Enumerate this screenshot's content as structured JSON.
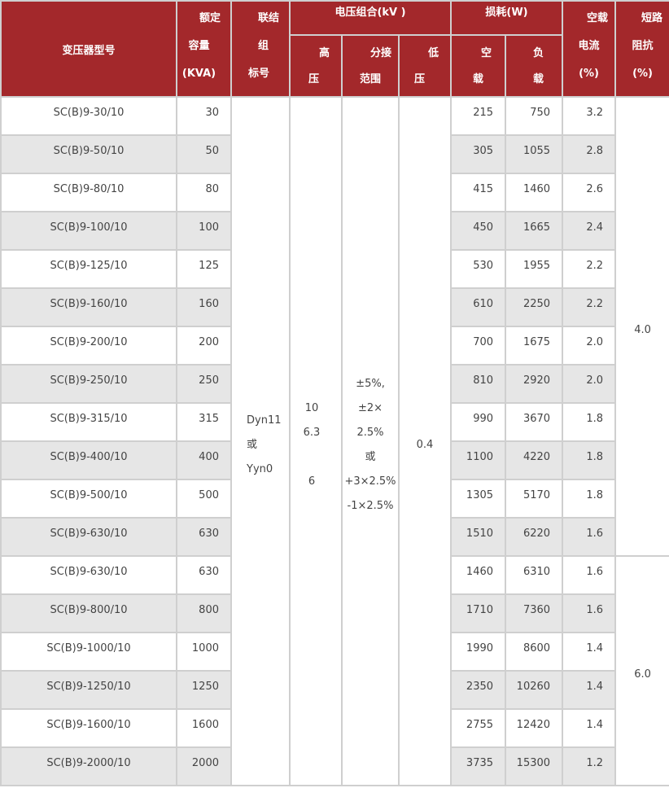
{
  "header": {
    "model": "变压器型号",
    "capacity": [
      "额定",
      "容量",
      "(KVA)"
    ],
    "connection": [
      "联结",
      "组",
      "标号"
    ],
    "voltage_group": "电压组合(kV )",
    "high_voltage": [
      "高",
      "压"
    ],
    "tap_range": [
      "分接",
      "范围"
    ],
    "low_voltage": [
      "低",
      "压"
    ],
    "loss_group": "损耗(W)",
    "no_load_loss": [
      "空",
      "载"
    ],
    "load_loss": [
      "负",
      "载"
    ],
    "no_load_current": [
      "空载",
      "电流",
      "(%)"
    ],
    "impedance": [
      "短路",
      "阻抗",
      "(%)"
    ]
  },
  "merged": {
    "connection": [
      "Dyn11",
      "或",
      "Yyn0"
    ],
    "high_voltage": [
      "10",
      "6.3",
      "",
      "6"
    ],
    "tap_range": [
      "±5%,",
      "±2×",
      "2.5%",
      "或",
      "+3×2.5%",
      "-1×2.5%"
    ],
    "low_voltage": "0.4",
    "impedance_groups": [
      {
        "value": "4.0",
        "rows": 12
      },
      {
        "value": "6.0",
        "rows": 6
      }
    ]
  },
  "rows": [
    {
      "model": "SC(B)9-30/10",
      "capacity": "30",
      "no_load": "215",
      "load": "750",
      "current": "3.2"
    },
    {
      "model": "SC(B)9-50/10",
      "capacity": "50",
      "no_load": "305",
      "load": "1055",
      "current": "2.8"
    },
    {
      "model": "SC(B)9-80/10",
      "capacity": "80",
      "no_load": "415",
      "load": "1460",
      "current": "2.6"
    },
    {
      "model": "SC(B)9-100/10",
      "capacity": "100",
      "no_load": "450",
      "load": "1665",
      "current": "2.4"
    },
    {
      "model": "SC(B)9-125/10",
      "capacity": "125",
      "no_load": "530",
      "load": "1955",
      "current": "2.2"
    },
    {
      "model": "SC(B)9-160/10",
      "capacity": "160",
      "no_load": "610",
      "load": "2250",
      "current": "2.2"
    },
    {
      "model": "SC(B)9-200/10",
      "capacity": "200",
      "no_load": "700",
      "load": "1675",
      "current": "2.0"
    },
    {
      "model": "SC(B)9-250/10",
      "capacity": "250",
      "no_load": "810",
      "load": "2920",
      "current": "2.0"
    },
    {
      "model": "SC(B)9-315/10",
      "capacity": "315",
      "no_load": "990",
      "load": "3670",
      "current": "1.8"
    },
    {
      "model": "SC(B)9-400/10",
      "capacity": "400",
      "no_load": "1100",
      "load": "4220",
      "current": "1.8"
    },
    {
      "model": "SC(B)9-500/10",
      "capacity": "500",
      "no_load": "1305",
      "load": "5170",
      "current": "1.8"
    },
    {
      "model": "SC(B)9-630/10",
      "capacity": "630",
      "no_load": "1510",
      "load": "6220",
      "current": "1.6"
    },
    {
      "model": "SC(B)9-630/10",
      "capacity": "630",
      "no_load": "1460",
      "load": "6310",
      "current": "1.6"
    },
    {
      "model": "SC(B)9-800/10",
      "capacity": "800",
      "no_load": "1710",
      "load": "7360",
      "current": "1.6"
    },
    {
      "model": "SC(B)9-1000/10",
      "capacity": "1000",
      "no_load": "1990",
      "load": "8600",
      "current": "1.4"
    },
    {
      "model": "SC(B)9-1250/10",
      "capacity": "1250",
      "no_load": "2350",
      "load": "10260",
      "current": "1.4"
    },
    {
      "model": "SC(B)9-1600/10",
      "capacity": "1600",
      "no_load": "2755",
      "load": "12420",
      "current": "1.4"
    },
    {
      "model": "SC(B)9-2000/10",
      "capacity": "2000",
      "no_load": "3735",
      "load": "15300",
      "current": "1.2"
    }
  ],
  "colors": {
    "header_bg": "#a3282b",
    "alt_row": "#e6e6e6",
    "border": "#cfcfcf"
  }
}
